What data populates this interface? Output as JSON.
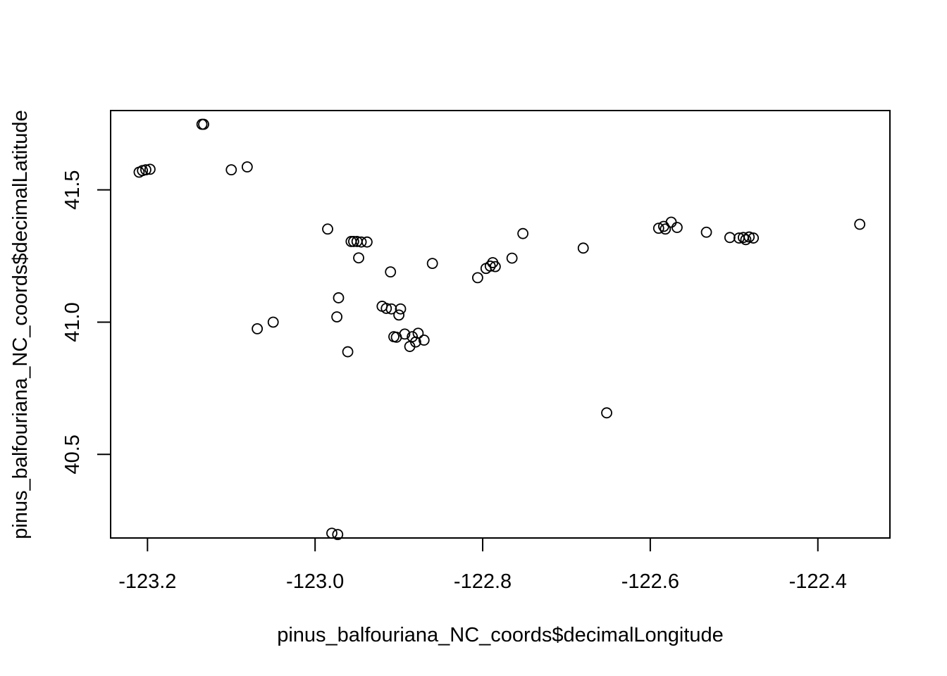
{
  "chart_data": {
    "type": "scatter",
    "title": "",
    "xlabel": "pinus_balfouriana_NC_coords$decimalLongitude",
    "ylabel": "pinus_balfouriana_NC_coords$decimalLatitude",
    "xlim": [
      -123.244,
      -122.314
    ],
    "ylim": [
      40.184,
      1.0
    ],
    "ylim_note": "",
    "x_ticks": [
      -123.2,
      -123.0,
      -122.8,
      -122.6,
      -122.4
    ],
    "x_tick_labels": [
      "-123.2",
      "-123.0",
      "-122.8",
      "-122.6",
      "-122.4"
    ],
    "y_ticks": [
      40.5,
      41.0,
      41.5
    ],
    "y_tick_labels": [
      "40.5",
      "41.0",
      "41.5"
    ],
    "grid": false,
    "marker": "open-circle",
    "points": [
      [
        -123.21,
        41.567
      ],
      [
        -123.206,
        41.573
      ],
      [
        -123.202,
        41.576
      ],
      [
        -123.197,
        41.578
      ],
      [
        -123.135,
        41.748
      ],
      [
        -123.133,
        41.748
      ],
      [
        -123.1,
        41.576
      ],
      [
        -123.081,
        41.587
      ],
      [
        -123.069,
        40.975
      ],
      [
        -123.05,
        41.0
      ],
      [
        -122.985,
        41.352
      ],
      [
        -122.98,
        40.202
      ],
      [
        -122.973,
        40.197
      ],
      [
        -122.972,
        41.092
      ],
      [
        -122.974,
        41.02
      ],
      [
        -122.961,
        40.888
      ],
      [
        -122.957,
        41.305
      ],
      [
        -122.954,
        41.305
      ],
      [
        -122.95,
        41.305
      ],
      [
        -122.945,
        41.303
      ],
      [
        -122.938,
        41.303
      ],
      [
        -122.948,
        41.243
      ],
      [
        -122.92,
        41.06
      ],
      [
        -122.915,
        41.052
      ],
      [
        -122.909,
        41.05
      ],
      [
        -122.898,
        41.05
      ],
      [
        -122.9,
        41.027
      ],
      [
        -122.91,
        41.19
      ],
      [
        -122.906,
        40.945
      ],
      [
        -122.903,
        40.943
      ],
      [
        -122.893,
        40.955
      ],
      [
        -122.887,
        40.908
      ],
      [
        -122.884,
        40.945
      ],
      [
        -122.88,
        40.925
      ],
      [
        -122.877,
        40.958
      ],
      [
        -122.87,
        40.932
      ],
      [
        -122.86,
        41.222
      ],
      [
        -122.806,
        41.168
      ],
      [
        -122.796,
        41.203
      ],
      [
        -122.791,
        41.212
      ],
      [
        -122.788,
        41.225
      ],
      [
        -122.785,
        41.21
      ],
      [
        -122.765,
        41.242
      ],
      [
        -122.752,
        41.335
      ],
      [
        -122.68,
        41.28
      ],
      [
        -122.652,
        40.657
      ],
      [
        -122.59,
        41.355
      ],
      [
        -122.584,
        41.362
      ],
      [
        -122.582,
        41.352
      ],
      [
        -122.575,
        41.378
      ],
      [
        -122.568,
        41.358
      ],
      [
        -122.533,
        41.34
      ],
      [
        -122.505,
        41.32
      ],
      [
        -122.494,
        41.318
      ],
      [
        -122.489,
        41.32
      ],
      [
        -122.486,
        41.312
      ],
      [
        -122.482,
        41.322
      ],
      [
        -122.477,
        41.318
      ],
      [
        -122.35,
        41.37
      ]
    ]
  }
}
